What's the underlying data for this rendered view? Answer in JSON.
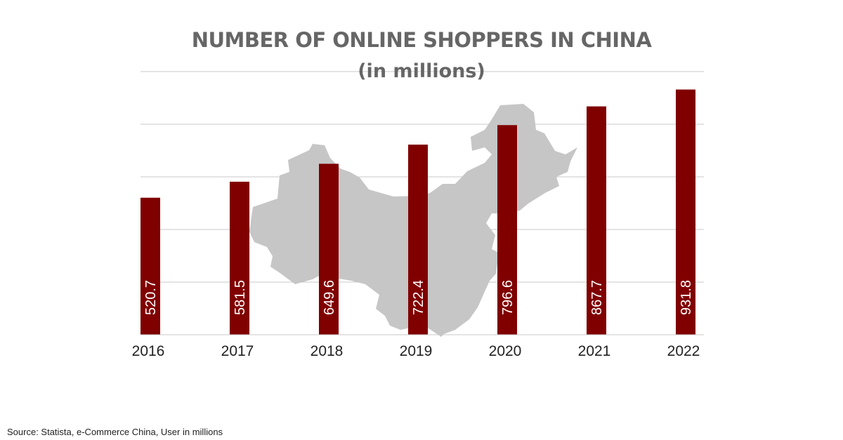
{
  "chart_data": {
    "type": "bar",
    "title": "NUMBER OF ONLINE SHOPPERS IN CHINA",
    "subtitle": "(in millions)",
    "xlabel": "",
    "ylabel": "",
    "categories": [
      "2016",
      "2017",
      "2018",
      "2019",
      "2020",
      "2021",
      "2022"
    ],
    "values": [
      520.7,
      581.5,
      649.6,
      722.4,
      796.6,
      867.7,
      931.8
    ],
    "value_labels": [
      "520.7",
      "581.5",
      "649.6",
      "722.4",
      "796.6",
      "867.7",
      "931.8"
    ],
    "ylim": [
      0,
      1000
    ],
    "grid": true,
    "legend": "none",
    "background_image": "china-map",
    "colors": {
      "bar": "#800000",
      "value_label": "#ffffff",
      "grid": "#c8c8c8",
      "map": "#c6c6c6",
      "title": "#666666",
      "tick_label": "#222222"
    }
  },
  "footer": {
    "source": "Source: Statista, e-Commerce China, User in millions"
  }
}
